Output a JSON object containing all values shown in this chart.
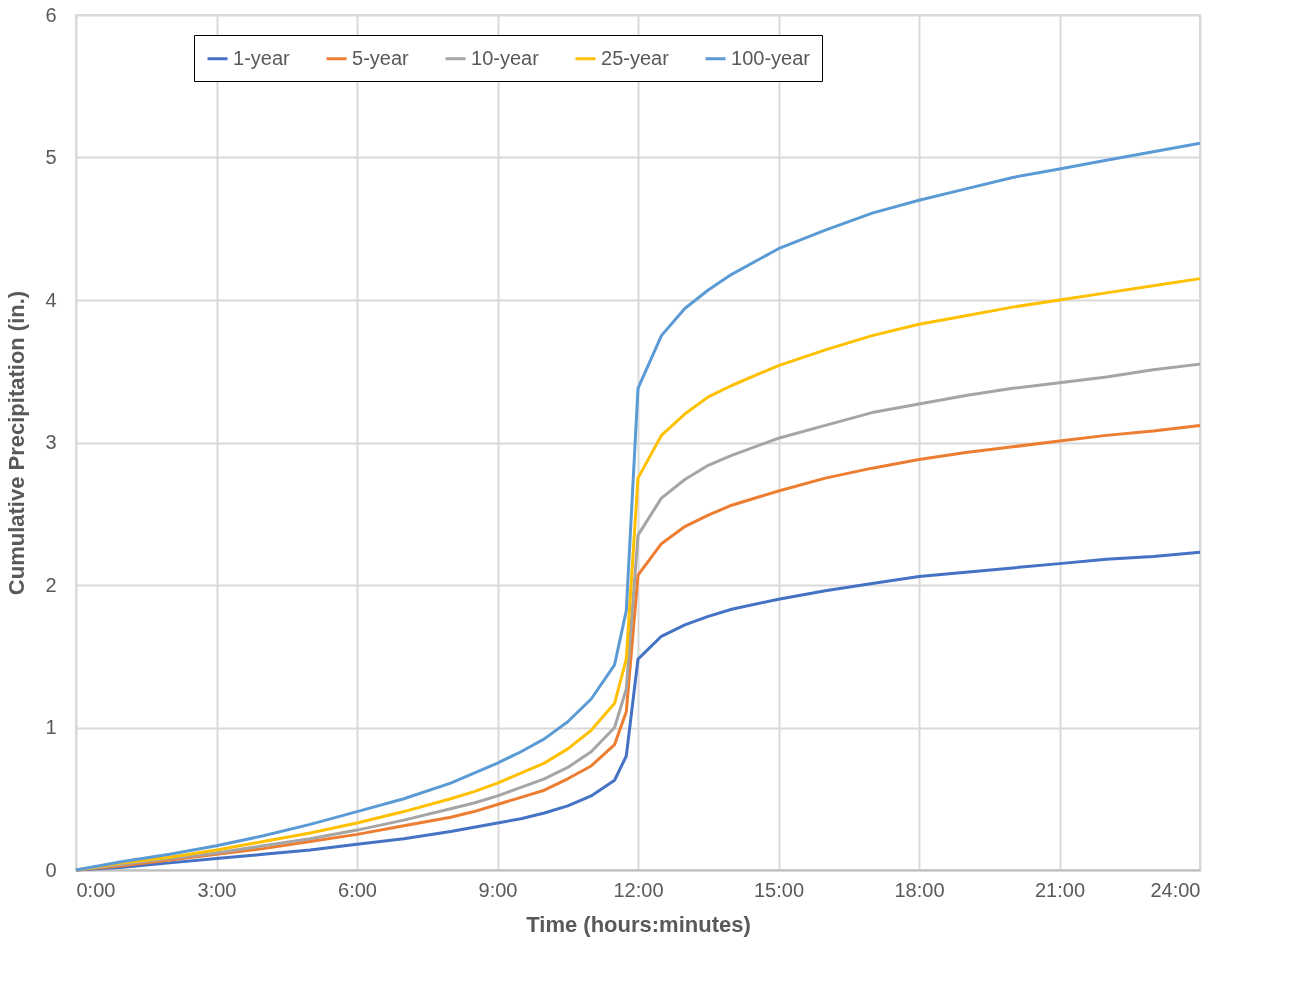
{
  "chart_data": {
    "type": "line",
    "xlabel": "Time (hours:minutes)",
    "ylabel": "Cumulative Precipitation (in.)",
    "x": [
      0,
      1,
      2,
      3,
      4,
      5,
      6,
      7,
      8,
      8.5,
      9,
      9.5,
      10,
      10.5,
      11,
      11.5,
      11.75,
      12,
      12.5,
      13,
      13.5,
      14,
      15,
      16,
      17,
      18,
      19,
      20,
      21,
      22,
      23,
      24
    ],
    "series": [
      {
        "name": "1-year",
        "color": "#4472c4",
        "values": [
          0,
          0.02,
          0.05,
          0.08,
          0.11,
          0.14,
          0.18,
          0.22,
          0.27,
          0.3,
          0.33,
          0.36,
          0.4,
          0.45,
          0.52,
          0.63,
          0.8,
          1.48,
          1.64,
          1.72,
          1.78,
          1.83,
          1.9,
          1.96,
          2.01,
          2.06,
          2.09,
          2.12,
          2.15,
          2.18,
          2.2,
          2.23
        ]
      },
      {
        "name": "5-year",
        "color": "#ed7d31",
        "values": [
          0,
          0.03,
          0.07,
          0.11,
          0.15,
          0.2,
          0.25,
          0.31,
          0.37,
          0.41,
          0.46,
          0.51,
          0.56,
          0.64,
          0.73,
          0.88,
          1.11,
          2.07,
          2.29,
          2.41,
          2.49,
          2.56,
          2.66,
          2.75,
          2.82,
          2.88,
          2.93,
          2.97,
          3.01,
          3.05,
          3.08,
          3.12
        ]
      },
      {
        "name": "10-year",
        "color": "#a5a5a5",
        "values": [
          0,
          0.04,
          0.08,
          0.12,
          0.17,
          0.22,
          0.28,
          0.35,
          0.43,
          0.47,
          0.52,
          0.58,
          0.64,
          0.72,
          0.83,
          1.0,
          1.27,
          2.35,
          2.61,
          2.74,
          2.84,
          2.91,
          3.03,
          3.12,
          3.21,
          3.27,
          3.33,
          3.38,
          3.42,
          3.46,
          3.51,
          3.55
        ]
      },
      {
        "name": "25-year",
        "color": "#ffc000",
        "values": [
          0,
          0.05,
          0.09,
          0.14,
          0.2,
          0.26,
          0.33,
          0.41,
          0.5,
          0.55,
          0.61,
          0.68,
          0.75,
          0.85,
          0.98,
          1.17,
          1.48,
          2.75,
          3.05,
          3.2,
          3.32,
          3.4,
          3.54,
          3.65,
          3.75,
          3.83,
          3.89,
          3.95,
          4.0,
          4.05,
          4.1,
          4.15
        ]
      },
      {
        "name": "100-year",
        "color": "#5b9bd5",
        "values": [
          0,
          0.06,
          0.11,
          0.17,
          0.24,
          0.32,
          0.41,
          0.5,
          0.61,
          0.68,
          0.75,
          0.83,
          0.92,
          1.04,
          1.2,
          1.44,
          1.82,
          3.38,
          3.75,
          3.94,
          4.07,
          4.18,
          4.36,
          4.49,
          4.61,
          4.7,
          4.78,
          4.86,
          4.92,
          4.98,
          5.04,
          5.1
        ]
      }
    ],
    "xlim": [
      0,
      24
    ],
    "xticks": [
      {
        "value": 0,
        "label": "0:00"
      },
      {
        "value": 3,
        "label": "3:00"
      },
      {
        "value": 6,
        "label": "6:00"
      },
      {
        "value": 9,
        "label": "9:00"
      },
      {
        "value": 12,
        "label": "12:00"
      },
      {
        "value": 15,
        "label": "15:00"
      },
      {
        "value": 18,
        "label": "18:00"
      },
      {
        "value": 21,
        "label": "21:00"
      },
      {
        "value": 24,
        "label": "24:00"
      }
    ],
    "ylim": [
      0,
      6
    ],
    "yticks": [
      0,
      1,
      2,
      3,
      4,
      5,
      6
    ],
    "grid": true,
    "legend": "top",
    "marker": "none",
    "line_style": "solid"
  }
}
